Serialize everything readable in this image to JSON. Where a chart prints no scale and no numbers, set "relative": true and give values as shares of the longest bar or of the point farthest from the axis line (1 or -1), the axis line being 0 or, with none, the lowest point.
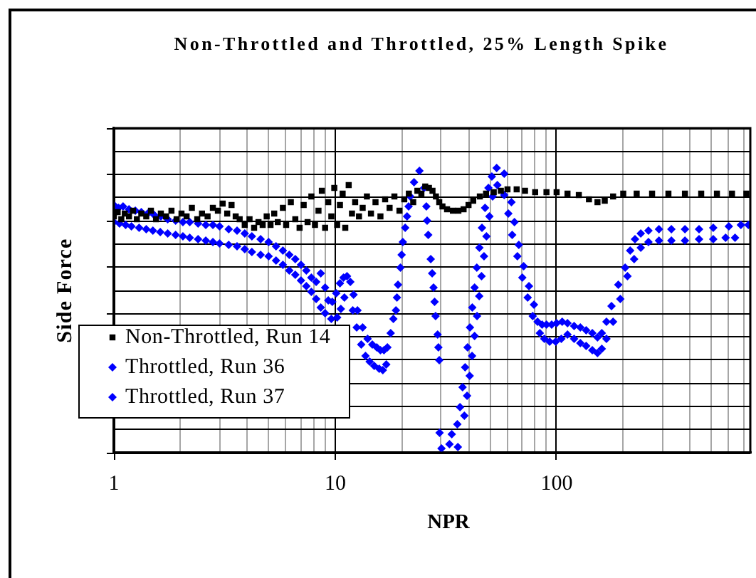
{
  "chart_data": {
    "type": "scatter",
    "title": "Non-Throttled and Throttled, 25% Length Spike",
    "xlabel": "NPR",
    "ylabel": "Side Force",
    "log": "x",
    "xlim": [
      1,
      750
    ],
    "xticks": [
      1,
      10,
      100
    ],
    "relative": true,
    "grid": true,
    "legend": "bottom left",
    "series": [
      {
        "name": "Non-Throttled, Run 14",
        "color": "#000000",
        "marker": "square",
        "x": [
          1.0,
          1.04,
          1.08,
          1.12,
          1.17,
          1.22,
          1.27,
          1.33,
          1.4,
          1.47,
          1.55,
          1.63,
          1.72,
          1.82,
          1.92,
          2.02,
          2.13,
          2.25,
          2.38,
          2.5,
          2.65,
          2.8,
          2.95,
          3.1,
          3.25,
          3.4,
          3.55,
          3.7,
          3.9,
          4.1,
          4.3,
          4.5,
          4.7,
          4.9,
          5.1,
          5.3,
          5.5,
          5.8,
          6.0,
          6.3,
          6.6,
          6.9,
          7.2,
          7.5,
          7.8,
          8.1,
          8.4,
          8.7,
          9.0,
          9.3,
          9.6,
          9.9,
          10.2,
          10.5,
          10.8,
          11.1,
          11.5,
          11.9,
          12.3,
          12.8,
          13.3,
          13.9,
          14.5,
          15.2,
          16,
          16.8,
          17.6,
          18.5,
          19.5,
          20.5,
          21.5,
          22.5,
          23.5,
          24.5,
          25.5,
          26.5,
          27.5,
          28.5,
          29.5,
          30.5,
          32,
          34,
          36,
          38,
          40,
          42,
          45,
          48,
          52,
          56,
          60,
          66,
          72,
          80,
          90,
          100,
          112,
          126,
          140,
          153,
          165,
          180,
          200,
          230,
          270,
          320,
          380,
          450,
          530,
          620,
          720
        ],
        "values": [
          0.83,
          0.845,
          0.82,
          0.84,
          0.83,
          0.85,
          0.82,
          0.84,
          0.83,
          0.85,
          0.82,
          0.84,
          0.83,
          0.85,
          0.82,
          0.84,
          0.83,
          0.86,
          0.82,
          0.84,
          0.83,
          0.86,
          0.85,
          0.875,
          0.84,
          0.87,
          0.83,
          0.82,
          0.8,
          0.82,
          0.79,
          0.81,
          0.8,
          0.83,
          0.8,
          0.84,
          0.81,
          0.86,
          0.8,
          0.88,
          0.82,
          0.79,
          0.87,
          0.81,
          0.9,
          0.8,
          0.85,
          0.92,
          0.79,
          0.88,
          0.83,
          0.93,
          0.8,
          0.87,
          0.91,
          0.79,
          0.94,
          0.84,
          0.88,
          0.83,
          0.86,
          0.9,
          0.84,
          0.88,
          0.83,
          0.89,
          0.86,
          0.9,
          0.85,
          0.89,
          0.91,
          0.88,
          0.92,
          0.91,
          0.935,
          0.93,
          0.92,
          0.9,
          0.88,
          0.865,
          0.855,
          0.85,
          0.85,
          0.855,
          0.87,
          0.885,
          0.9,
          0.91,
          0.915,
          0.92,
          0.925,
          0.925,
          0.92,
          0.915,
          0.915,
          0.915,
          0.91,
          0.905,
          0.89,
          0.88,
          0.885,
          0.9,
          0.91,
          0.91,
          0.91,
          0.91,
          0.91,
          0.91,
          0.91,
          0.91,
          0.91
        ]
      },
      {
        "name": "Throttled, Run 36",
        "color": "#0000ff",
        "marker": "diamond",
        "x": [
          1.0,
          1.05,
          1.1,
          1.17,
          1.25,
          1.33,
          1.42,
          1.52,
          1.63,
          1.75,
          1.9,
          2.05,
          2.2,
          2.4,
          2.6,
          2.8,
          3.0,
          3.3,
          3.6,
          3.9,
          4.2,
          4.6,
          5.0,
          5.4,
          5.8,
          6.2,
          6.6,
          7.0,
          7.4,
          7.8,
          8.2,
          8.6,
          9.0,
          9.3,
          9.7,
          10.1,
          10.5,
          10.9,
          11.3,
          11.7,
          12.1,
          12.6,
          13.3,
          14.0,
          14.7,
          15.4,
          16.0,
          16.6,
          17.2,
          17.8,
          18.3,
          18.8,
          19.2,
          19.7,
          20.2,
          20.7,
          21.1,
          21.8,
          22.7,
          24.0,
          25.2,
          25.8,
          26.3,
          27.0,
          27.8,
          28.4,
          29.0,
          29.5,
          29.6,
          32.8,
          35.6,
          36.6,
          37.6,
          38.6,
          39.6,
          40.6,
          41.6,
          42.6,
          43.6,
          44.8,
          46.0,
          47.5,
          49.2,
          51.0,
          53.6,
          58.0,
          60.5,
          63,
          66.5,
          70,
          74,
          78,
          82,
          86,
          90,
          95,
          100,
          106,
          112,
          120,
          128,
          136,
          145,
          153,
          160,
          168,
          177,
          190,
          204,
          215,
          226,
          240,
          260,
          290,
          330,
          380,
          440,
          510,
          600,
          680,
          735
        ],
        "values": [
          0.87,
          0.86,
          0.865,
          0.855,
          0.85,
          0.845,
          0.84,
          0.835,
          0.83,
          0.82,
          0.815,
          0.81,
          0.81,
          0.805,
          0.8,
          0.8,
          0.795,
          0.785,
          0.78,
          0.77,
          0.76,
          0.75,
          0.74,
          0.725,
          0.71,
          0.695,
          0.68,
          0.66,
          0.64,
          0.615,
          0.6,
          0.63,
          0.58,
          0.535,
          0.53,
          0.56,
          0.595,
          0.615,
          0.62,
          0.6,
          0.555,
          0.5,
          0.44,
          0.4,
          0.38,
          0.37,
          0.36,
          0.36,
          0.37,
          0.42,
          0.47,
          0.5,
          0.59,
          0.65,
          0.74,
          0.79,
          0.83,
          0.9,
          0.95,
          0.99,
          0.93,
          0.865,
          0.765,
          0.68,
          0.58,
          0.48,
          0.415,
          0.325,
          0.07,
          0.03,
          0.1,
          0.16,
          0.23,
          0.3,
          0.37,
          0.44,
          0.51,
          0.58,
          0.65,
          0.72,
          0.79,
          0.86,
          0.93,
          0.97,
          1.0,
          0.905,
          0.84,
          0.765,
          0.69,
          0.615,
          0.545,
          0.48,
          0.46,
          0.45,
          0.45,
          0.45,
          0.455,
          0.46,
          0.455,
          0.445,
          0.44,
          0.43,
          0.42,
          0.405,
          0.42,
          0.46,
          0.515,
          0.59,
          0.65,
          0.71,
          0.75,
          0.77,
          0.78,
          0.785,
          0.785,
          0.785,
          0.785,
          0.79,
          0.795,
          0.8,
          0.8
        ]
      },
      {
        "name": "Throttled, Run 37",
        "color": "#0000ff",
        "marker": "diamond",
        "x": [
          1.0,
          1.06,
          1.13,
          1.2,
          1.3,
          1.4,
          1.5,
          1.62,
          1.75,
          1.9,
          2.05,
          2.2,
          2.4,
          2.6,
          2.8,
          3.0,
          3.3,
          3.6,
          3.9,
          4.2,
          4.6,
          5.0,
          5.4,
          5.8,
          6.2,
          6.6,
          7.0,
          7.4,
          7.8,
          8.2,
          8.6,
          9.0,
          9.6,
          10.2,
          10.6,
          11.0,
          12.0,
          12.5,
          13.1,
          13.7,
          14.3,
          15.0,
          15.8,
          16.4,
          17.0,
          19.0,
          19.95,
          21.45,
          26.0,
          27.4,
          28.1,
          29.25,
          30.2,
          33.6,
          35.8,
          38.3,
          39.4,
          40.5,
          41.5,
          42.6,
          43.7,
          44.7,
          45.8,
          47.0,
          48.2,
          49.7,
          51.4,
          54.0,
          58,
          62.5,
          64.5,
          67.5,
          71,
          75,
          79,
          84,
          88,
          93,
          99,
          105,
          112,
          120,
          128,
          136,
          145,
          153,
          160,
          168,
          180,
          194,
          209,
          224,
          240,
          260,
          290,
          330,
          380,
          440,
          510,
          580,
          640
        ],
        "values": [
          0.81,
          0.805,
          0.8,
          0.795,
          0.79,
          0.785,
          0.78,
          0.775,
          0.77,
          0.765,
          0.76,
          0.755,
          0.75,
          0.745,
          0.74,
          0.735,
          0.73,
          0.725,
          0.715,
          0.705,
          0.695,
          0.69,
          0.675,
          0.66,
          0.64,
          0.625,
          0.605,
          0.585,
          0.565,
          0.54,
          0.51,
          0.49,
          0.47,
          0.475,
          0.505,
          0.545,
          0.5,
          0.44,
          0.38,
          0.34,
          0.32,
          0.305,
          0.295,
          0.29,
          0.31,
          0.545,
          0.695,
          0.865,
          0.815,
          0.63,
          0.53,
          0.37,
          0.015,
          0.065,
          0.02,
          0.13,
          0.2,
          0.27,
          0.34,
          0.41,
          0.48,
          0.55,
          0.62,
          0.69,
          0.76,
          0.83,
          0.9,
          0.94,
          0.98,
          0.88,
          0.81,
          0.73,
          0.655,
          0.585,
          0.52,
          0.42,
          0.4,
          0.39,
          0.39,
          0.4,
          0.415,
          0.4,
          0.385,
          0.375,
          0.36,
          0.35,
          0.365,
          0.4,
          0.46,
          0.54,
          0.62,
          0.68,
          0.72,
          0.74,
          0.745,
          0.745,
          0.745,
          0.75,
          0.75,
          0.755,
          0.755
        ]
      }
    ]
  }
}
